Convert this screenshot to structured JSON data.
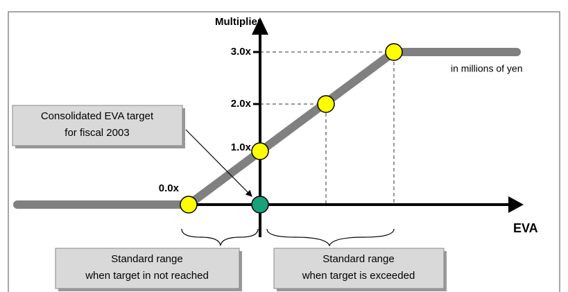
{
  "diagram": {
    "y_axis_label": "Multiplier",
    "x_axis_label": "EVA",
    "unit_note": "in millions of yen",
    "levels": [
      "0.0x",
      "1.0x",
      "2.0x",
      "3.0x"
    ],
    "callout": [
      "Consolidated EVA target",
      "for fiscal 2003"
    ],
    "ranges": [
      [
        "Standard range",
        "when target in not reached"
      ],
      [
        "Standard range",
        "when target is exceeded"
      ]
    ]
  }
}
